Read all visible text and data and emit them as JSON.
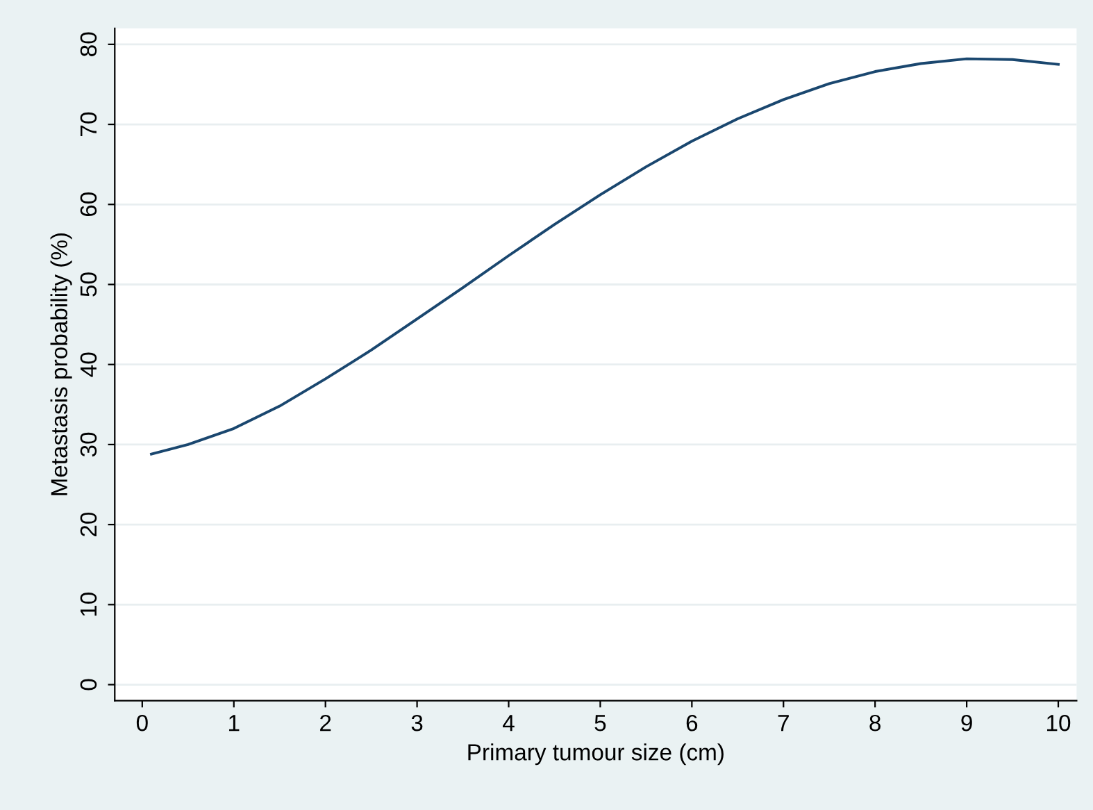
{
  "chart_data": {
    "type": "line",
    "xlabel": "Primary tumour size (cm)",
    "ylabel": "Metastasis probability (%)",
    "x": [
      0.1,
      0.5,
      1,
      1.5,
      2,
      2.5,
      3,
      3.5,
      4,
      4.5,
      5,
      5.5,
      6,
      6.5,
      7,
      7.5,
      8,
      8.5,
      9,
      9.5,
      10
    ],
    "series": [
      {
        "color": "#1a476f",
        "values": [
          28.8,
          30,
          32,
          34.8,
          38.2,
          41.8,
          45.7,
          49.6,
          53.6,
          57.5,
          61.2,
          64.7,
          67.9,
          70.7,
          73.1,
          75.1,
          76.6,
          77.6,
          78.2,
          78.1,
          77.5
        ]
      }
    ],
    "xlim": [
      -0.3,
      10.2
    ],
    "ylim": [
      -2,
      82
    ],
    "xticks": [
      0,
      1,
      2,
      3,
      4,
      5,
      6,
      7,
      8,
      9,
      10
    ],
    "yticks": [
      0,
      10,
      20,
      30,
      40,
      50,
      60,
      70,
      80
    ],
    "grid": "y",
    "marker": "none",
    "line_style": "solid"
  }
}
